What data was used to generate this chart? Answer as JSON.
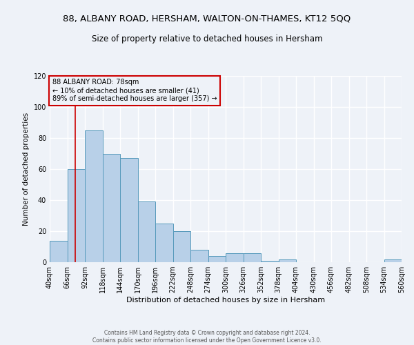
{
  "title": "88, ALBANY ROAD, HERSHAM, WALTON-ON-THAMES, KT12 5QQ",
  "subtitle": "Size of property relative to detached houses in Hersham",
  "xlabel": "Distribution of detached houses by size in Hersham",
  "ylabel": "Number of detached properties",
  "bin_edges": [
    40,
    66,
    92,
    118,
    144,
    170,
    196,
    222,
    248,
    274,
    300,
    326,
    352,
    378,
    404,
    430,
    456,
    482,
    508,
    534,
    560
  ],
  "bar_heights": [
    14,
    60,
    85,
    70,
    67,
    39,
    25,
    20,
    8,
    4,
    6,
    6,
    1,
    2,
    0,
    0,
    0,
    0,
    0,
    2
  ],
  "bar_color": "#b8d0e8",
  "bar_edgecolor": "#5599bb",
  "reference_line_x": 78,
  "reference_line_color": "#cc0000",
  "ylim": [
    0,
    120
  ],
  "yticks": [
    0,
    20,
    40,
    60,
    80,
    100,
    120
  ],
  "annotation_text": "88 ALBANY ROAD: 78sqm\n← 10% of detached houses are smaller (41)\n89% of semi-detached houses are larger (357) →",
  "annotation_box_edgecolor": "#cc0000",
  "footer_line1": "Contains HM Land Registry data © Crown copyright and database right 2024.",
  "footer_line2": "Contains public sector information licensed under the Open Government Licence v3.0.",
  "bg_color": "#eef2f8",
  "grid_color": "#ffffff",
  "tick_label_fontsize": 7,
  "title_fontsize": 9.5,
  "subtitle_fontsize": 8.5,
  "ylabel_fontsize": 7.5,
  "xlabel_fontsize": 8
}
